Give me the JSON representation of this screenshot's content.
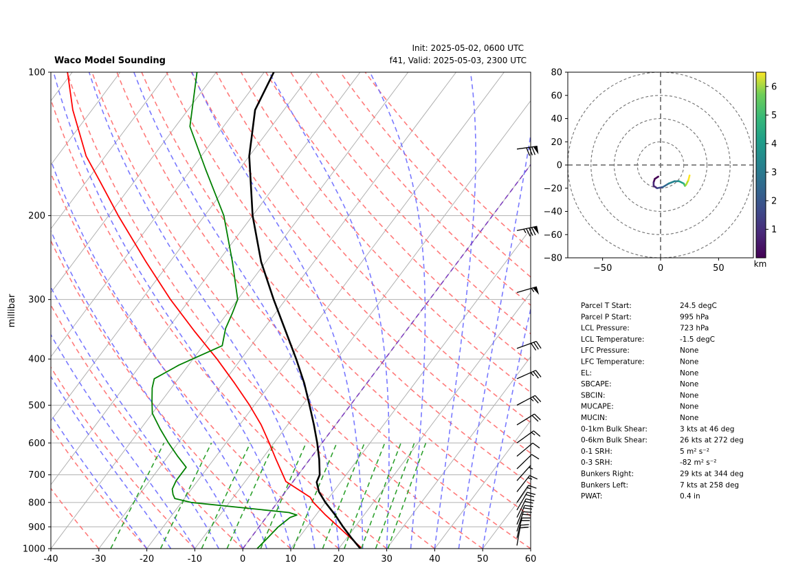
{
  "header": {
    "title": "Waco Model Sounding",
    "init": "Init: 2025-05-02, 0600 UTC",
    "valid": "f41, Valid: 2025-05-03, 2300 UTC"
  },
  "chart_data": [
    {
      "type": "skewt",
      "ylabel": "millibar",
      "xlim": [
        -40,
        60
      ],
      "ylim": [
        1000,
        100
      ],
      "x_ticks": [
        -40,
        -30,
        -20,
        -10,
        0,
        10,
        20,
        30,
        40,
        50,
        60
      ],
      "y_ticks": [
        100,
        200,
        300,
        400,
        500,
        600,
        700,
        800,
        900,
        1000
      ],
      "temperature": {
        "color": "#000000",
        "pressure": [
          1000,
          950,
          900,
          850,
          800,
          760,
          725,
          700,
          650,
          600,
          550,
          500,
          450,
          400,
          350,
          300,
          250,
          200,
          150,
          120,
          100
        ],
        "values": [
          24.5,
          21.0,
          17.5,
          14.0,
          10.0,
          7.0,
          5.0,
          4.5,
          2.0,
          -1.0,
          -4.5,
          -8.5,
          -13.0,
          -18.5,
          -25.0,
          -32.5,
          -41.0,
          -50.0,
          -60.0,
          -66.0,
          -68.0
        ]
      },
      "dewpoint": {
        "color": "#008000",
        "pressure": [
          1000,
          950,
          900,
          860,
          850,
          840,
          800,
          785,
          770,
          750,
          720,
          675,
          640,
          600,
          560,
          520,
          490,
          460,
          440,
          412,
          375,
          345,
          320,
          300,
          250,
          200,
          160,
          130,
          100
        ],
        "values": [
          3.0,
          3.5,
          4.0,
          5.0,
          6.0,
          4.0,
          -18.0,
          -22.0,
          -23.0,
          -24.0,
          -24.5,
          -24.5,
          -28.0,
          -32.0,
          -36.0,
          -40.0,
          -42.0,
          -44.0,
          -45.0,
          -42.0,
          -36.0,
          -38.0,
          -39.0,
          -40.0,
          -47.0,
          -56.0,
          -67.0,
          -77.0,
          -84.0
        ]
      },
      "parcel": {
        "color": "#ff0000",
        "pressure": [
          995,
          850,
          800,
          780,
          723,
          650,
          600,
          550,
          500,
          450,
          400,
          350,
          300,
          250,
          200,
          170,
          150,
          120,
          100
        ],
        "values": [
          24.5,
          12.0,
          7.5,
          6.0,
          -1.5,
          -7.0,
          -11.0,
          -15.5,
          -21.0,
          -27.5,
          -35.0,
          -44.0,
          -54.0,
          -65.0,
          -78.0,
          -87.0,
          -94.0,
          -104.0,
          -111.0
        ]
      },
      "dry_adiabats_C": [
        -30,
        -20,
        -10,
        0,
        10,
        20,
        30,
        40,
        50,
        60,
        70,
        80,
        90,
        100,
        110,
        120,
        130,
        140,
        150,
        160
      ],
      "moist_adiabats_C": [
        -20,
        -15,
        -10,
        -5,
        0,
        5,
        10,
        15,
        20,
        25,
        30,
        35,
        40,
        45,
        50
      ],
      "mixing_ratio_lines": [
        0.4,
        1.0,
        2.0,
        3.0,
        5.0,
        8.0,
        12.0,
        16.0,
        20.0,
        24.0,
        28.0
      ],
      "isotherm_C": 0,
      "isotherm_color": "#7f3fbf",
      "wind_barbs": [
        {
          "pressure": 985,
          "speed_kt": 20
        },
        {
          "pressure": 950,
          "speed_kt": 20
        },
        {
          "pressure": 920,
          "speed_kt": 20
        },
        {
          "pressure": 890,
          "speed_kt": 20
        },
        {
          "pressure": 860,
          "speed_kt": 20
        },
        {
          "pressure": 830,
          "speed_kt": 20
        },
        {
          "pressure": 800,
          "speed_kt": 15
        },
        {
          "pressure": 760,
          "speed_kt": 15
        },
        {
          "pressure": 720,
          "speed_kt": 5
        },
        {
          "pressure": 680,
          "speed_kt": 10
        },
        {
          "pressure": 640,
          "speed_kt": 10
        },
        {
          "pressure": 600,
          "speed_kt": 15
        },
        {
          "pressure": 550,
          "speed_kt": 20
        },
        {
          "pressure": 500,
          "speed_kt": 25
        },
        {
          "pressure": 440,
          "speed_kt": 25
        },
        {
          "pressure": 380,
          "speed_kt": 30
        },
        {
          "pressure": 290,
          "speed_kt": 55
        },
        {
          "pressure": 215,
          "speed_kt": 85
        },
        {
          "pressure": 145,
          "speed_kt": 80
        }
      ]
    },
    {
      "type": "scatter",
      "subtype": "hodograph",
      "xlim": [
        -80,
        80
      ],
      "ylim": [
        -80,
        80
      ],
      "x_ticks": [
        -50,
        0,
        50
      ],
      "y_ticks": [
        -80,
        -60,
        -40,
        -20,
        0,
        20,
        40,
        60,
        80
      ],
      "range_rings": [
        20,
        40,
        60,
        80
      ],
      "colorbar": {
        "label": "km",
        "range": [
          0,
          6.5
        ],
        "ticks": [
          1,
          2,
          3,
          4,
          5,
          6
        ],
        "colormap": "viridis"
      },
      "u": [
        -2,
        -5,
        -6,
        -6,
        -3,
        2,
        7,
        12,
        16,
        20,
        21,
        22,
        24,
        25
      ],
      "v": [
        -10,
        -12,
        -15,
        -18,
        -20,
        -19,
        -16,
        -14,
        -14,
        -16,
        -18,
        -17,
        -13,
        -9
      ],
      "height_km": [
        0.05,
        0.3,
        0.6,
        1.0,
        1.4,
        1.9,
        2.4,
        2.9,
        3.4,
        3.9,
        4.4,
        5.0,
        5.6,
        6.3
      ]
    }
  ],
  "parameters": [
    {
      "label": "Parcel T Start:",
      "value": "24.5 degC"
    },
    {
      "label": "Parcel P Start:",
      "value": "995 hPa"
    },
    {
      "label": "LCL Pressure:",
      "value": "723 hPa"
    },
    {
      "label": "LCL Temperature:",
      "value": "-1.5 degC"
    },
    {
      "label": "LFC Pressure:",
      "value": "None"
    },
    {
      "label": "LFC Temperature:",
      "value": "None"
    },
    {
      "label": "EL:",
      "value": "None"
    },
    {
      "label": "SBCAPE:",
      "value": "None"
    },
    {
      "label": "SBCIN:",
      "value": "None"
    },
    {
      "label": "MUCAPE:",
      "value": "None"
    },
    {
      "label": "MUCIN:",
      "value": "None"
    },
    {
      "label": "0-1km Bulk Shear:",
      "value": "3 kts at 46 deg"
    },
    {
      "label": "0-6km Bulk Shear:",
      "value": "26 kts at 272 deg"
    },
    {
      "label": "0-1 SRH:",
      "value": "5 m² s⁻²"
    },
    {
      "label": "0-3 SRH:",
      "value": "-82 m² s⁻²"
    },
    {
      "label": "Bunkers Right:",
      "value": "29 kts at 344 deg"
    },
    {
      "label": "Bunkers Left:",
      "value": "7 kts at 258 deg"
    },
    {
      "label": "PWAT:",
      "value": "0.4 in"
    }
  ]
}
